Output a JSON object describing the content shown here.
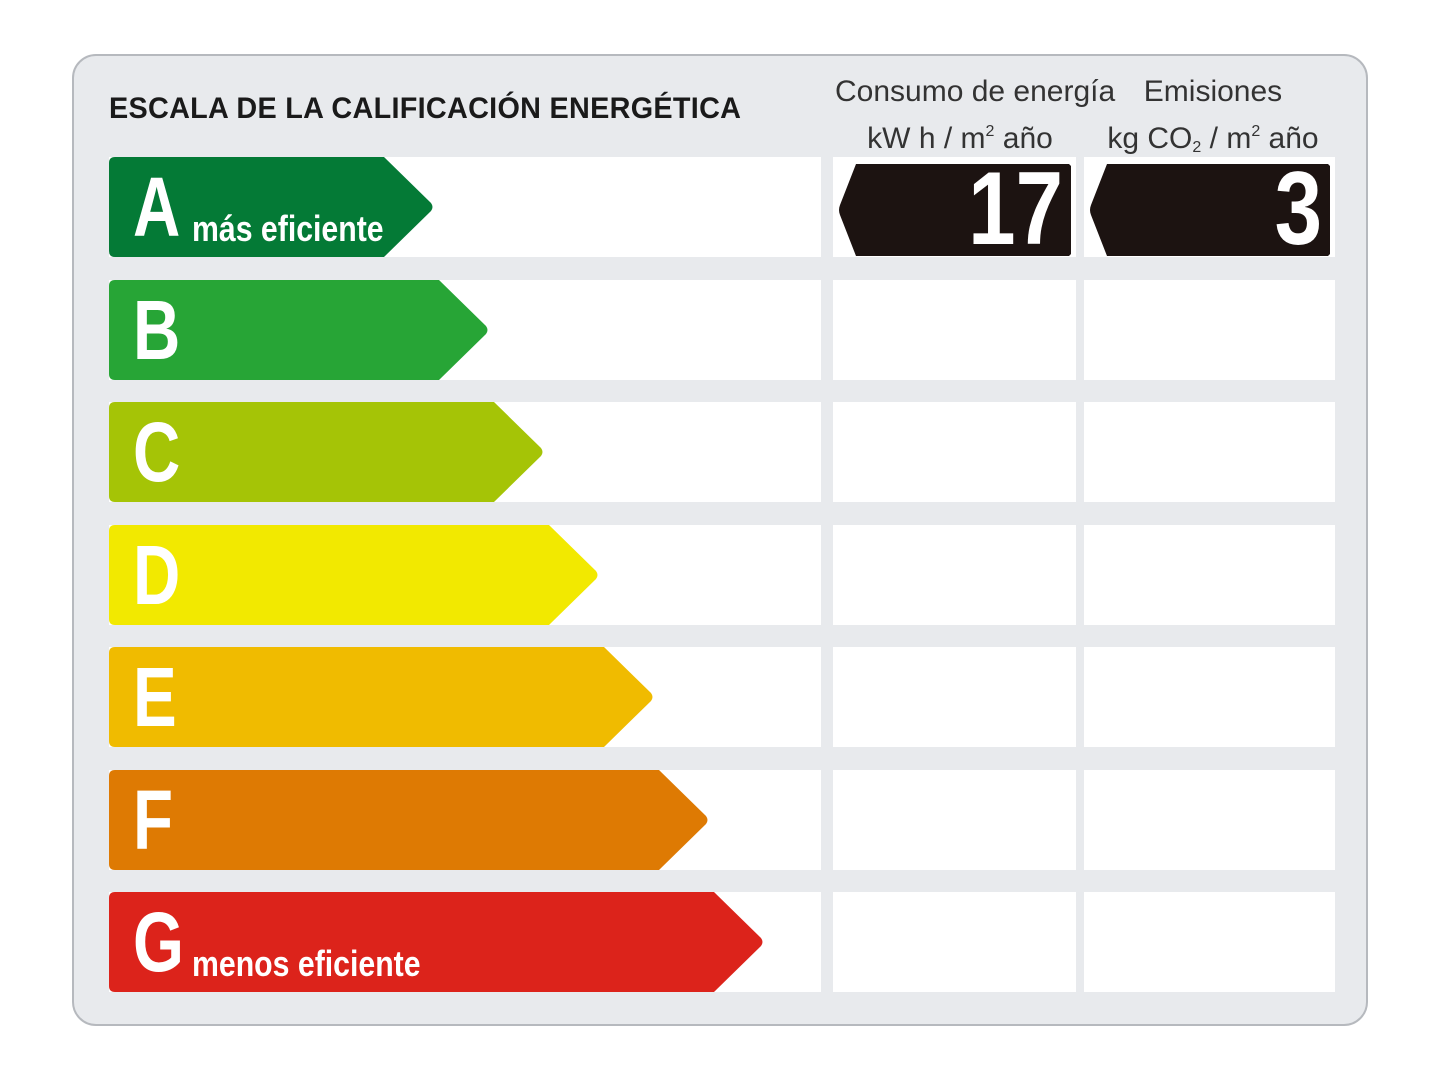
{
  "title": "ESCALA DE LA CALIFICACIÓN ENERGÉTICA",
  "columns": [
    {
      "line1": "Consumo de energía",
      "unit_pre": "kW h / m",
      "unit_sup": "2",
      "unit_post": " año"
    },
    {
      "line1": "Emisiones",
      "unit_pre": "kg CO",
      "unit_sub": "2",
      "unit_mid": " / m",
      "unit_sup": "2",
      "unit_post": " año"
    }
  ],
  "scale": [
    {
      "letter": "A",
      "label": "más eficiente",
      "color": "#047a36"
    },
    {
      "letter": "B",
      "label": "",
      "color": "#27a536"
    },
    {
      "letter": "C",
      "label": "",
      "color": "#a5c406"
    },
    {
      "letter": "D",
      "label": "",
      "color": "#f2e900"
    },
    {
      "letter": "E",
      "label": "",
      "color": "#f0bb00"
    },
    {
      "letter": "F",
      "label": "",
      "color": "#de7a03"
    },
    {
      "letter": "G",
      "label": "menos eficiente",
      "color": "#dc231b"
    }
  ],
  "rating": {
    "class": "A",
    "consumo_value": "17",
    "emisiones_value": "3",
    "indicator_color": "#1c1311"
  }
}
